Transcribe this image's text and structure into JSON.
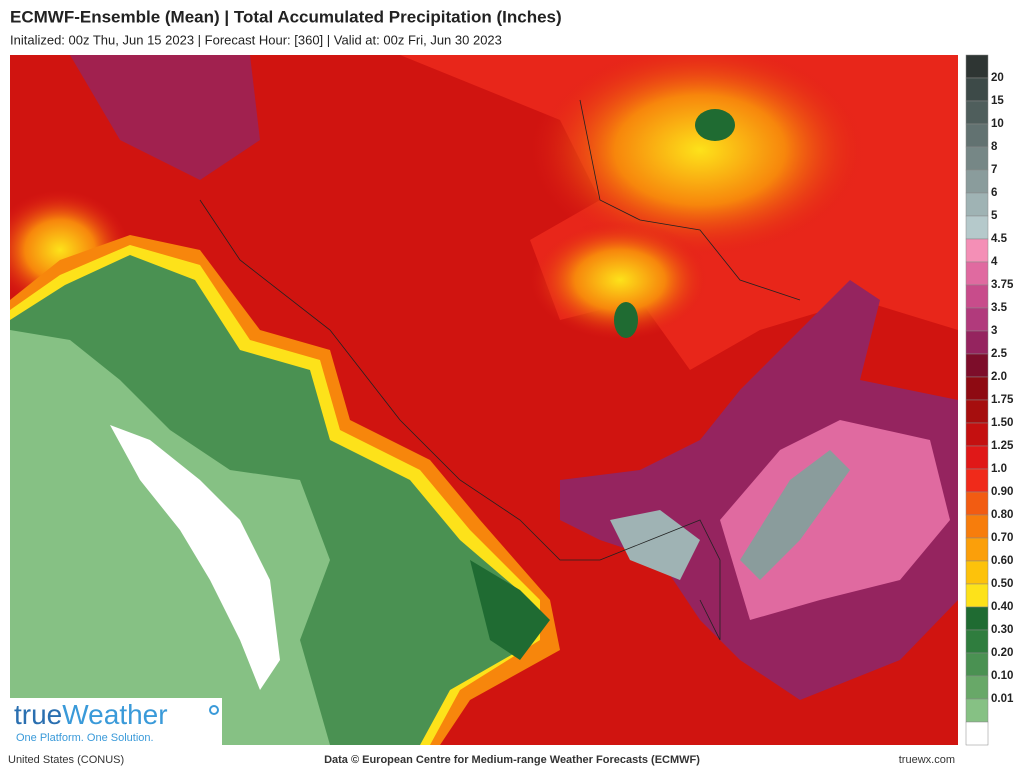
{
  "header": {
    "title": "ECMWF-Ensemble (Mean)  | Total Accumulated Precipitation (Inches)",
    "subtitle": "Initalized: 00z Thu, Jun 15 2023  |  Forecast Hour: [360]  |  Valid at: 00z Fri, Jun 30 2023"
  },
  "legend": {
    "colors": [
      "#2e3533",
      "#3d4a48",
      "#4f5e5c",
      "#627271",
      "#768786",
      "#8a9c9c",
      "#9fb3b4",
      "#b5c9cb",
      "#f48fb6",
      "#e06aa0",
      "#c84c8b",
      "#b13a7c",
      "#95245f",
      "#7d0d2a",
      "#8e0a12",
      "#a60e0e",
      "#c41010",
      "#e01818",
      "#f02a1a",
      "#f25c12",
      "#f77d0c",
      "#fb9f0a",
      "#fdc20b",
      "#fde21a",
      "#1f6b32",
      "#2f7d3e",
      "#4a9152",
      "#68a868",
      "#86c184",
      "#ffffff"
    ],
    "labels": [
      "20",
      "15",
      "10",
      "8",
      "7",
      "6",
      "5",
      "4.5",
      "4",
      "3.75",
      "3.5",
      "3",
      "2.5",
      "2.0",
      "1.75",
      "1.50",
      "1.25",
      "1.0",
      "0.90",
      "0.80",
      "0.70",
      "0.60",
      "0.50",
      "0.40",
      "0.30",
      "0.20",
      "0.10",
      "0.01"
    ]
  },
  "logo": {
    "name_a": "true",
    "name_b": "Weather",
    "tagline": "One Platform. One Solution."
  },
  "footer": {
    "region": "United States (CONUS)",
    "credit": "Data © European Centre for Medium-range Weather Forecasts (ECMWF)",
    "site": "truewx.com"
  }
}
